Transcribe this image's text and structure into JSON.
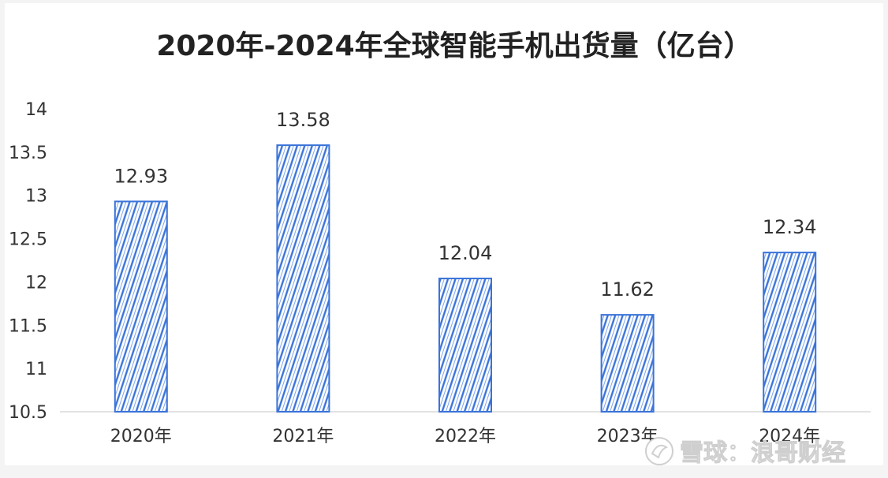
{
  "chart_data": {
    "type": "bar",
    "title": "2020年-2024年全球智能手机出货量（亿台）",
    "categories": [
      "2020年",
      "2021年",
      "2022年",
      "2023年",
      "2024年"
    ],
    "values": [
      12.93,
      13.58,
      12.04,
      11.62,
      12.34
    ],
    "data_labels": [
      "12.93",
      "13.58",
      "12.04",
      "11.62",
      "12.34"
    ],
    "ylim": [
      10.5,
      14
    ],
    "yticks": [
      10.5,
      11,
      11.5,
      12,
      12.5,
      13,
      13.5,
      14
    ],
    "ytick_labels": [
      "10.5",
      "11",
      "11.5",
      "12",
      "12.5",
      "13",
      "13.5",
      "14"
    ],
    "xlabel": "",
    "ylabel": "",
    "grid": false,
    "bar_color": "#3a73d9",
    "bar_fill": "hatched"
  },
  "watermark": {
    "text": "雪球：浪哥财经",
    "icon": "snowball-logo-icon"
  }
}
